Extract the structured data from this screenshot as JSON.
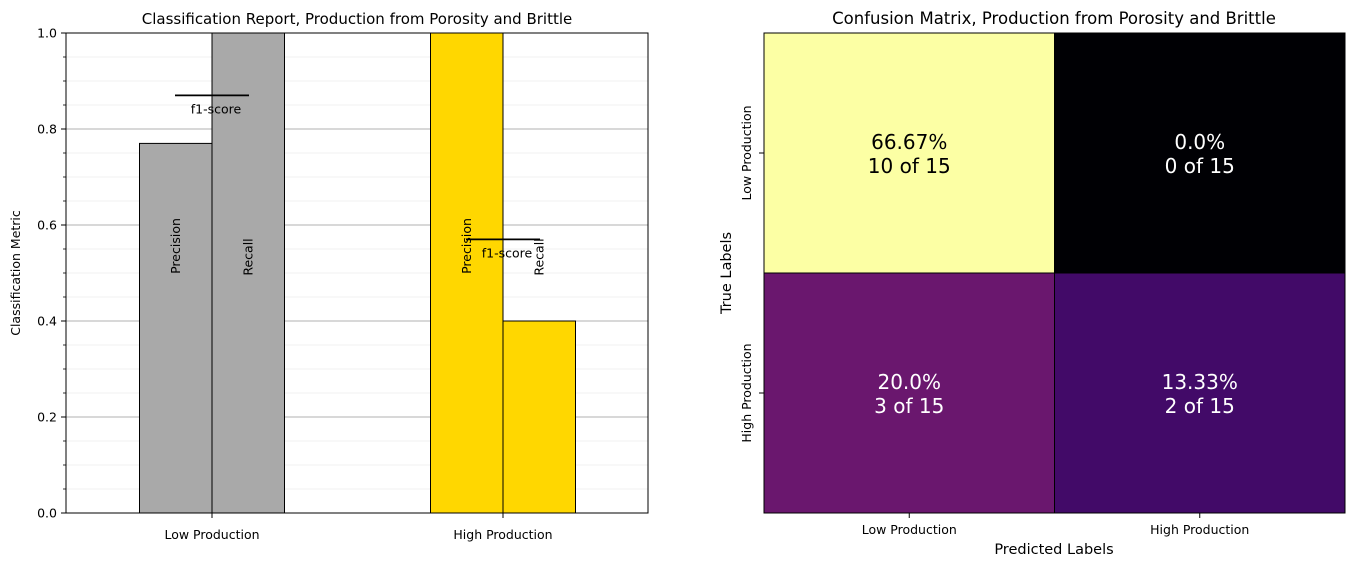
{
  "chart_data": [
    {
      "type": "bar",
      "title": "Classification Report, Production from Porosity and Brittle",
      "xlabel": "",
      "ylabel": "Classification Metric",
      "ylim": [
        0,
        1.0
      ],
      "yticks": [
        "0.0",
        "0.2",
        "0.4",
        "0.6",
        "0.8",
        "1.0"
      ],
      "grid": true,
      "categories": [
        "Low Production",
        "High Production"
      ],
      "series": [
        {
          "name": "Precision",
          "values": [
            0.77,
            1.0
          ]
        },
        {
          "name": "Recall",
          "values": [
            1.0,
            0.4
          ]
        },
        {
          "name": "f1-score",
          "values": [
            0.87,
            0.57
          ]
        }
      ],
      "colors": [
        "#a9a9a9",
        "#ffd700"
      ]
    },
    {
      "type": "heatmap",
      "title": "Confusion Matrix, Production from Porosity and Brittle",
      "xlabel": "Predicted Labels",
      "ylabel": "True Labels",
      "x_categories": [
        "Low Production",
        "High Production"
      ],
      "y_categories": [
        "Low Production",
        "High Production"
      ],
      "values": [
        [
          10,
          0
        ],
        [
          3,
          2
        ]
      ],
      "total": 15,
      "cell_text": [
        [
          {
            "pct": "66.67%",
            "count": "10 of 15"
          },
          {
            "pct": "0.0%",
            "count": "0 of 15"
          }
        ],
        [
          {
            "pct": "20.0%",
            "count": "3 of 15"
          },
          {
            "pct": "13.33%",
            "count": "2 of 15"
          }
        ]
      ],
      "colormap": "inferno",
      "cell_colors": [
        [
          "#fcffa4",
          "#000004"
        ],
        [
          "#6a176e",
          "#420a68"
        ]
      ],
      "text_colors": [
        [
          "#000000",
          "#ffffff"
        ],
        [
          "#ffffff",
          "#ffffff"
        ]
      ]
    }
  ]
}
